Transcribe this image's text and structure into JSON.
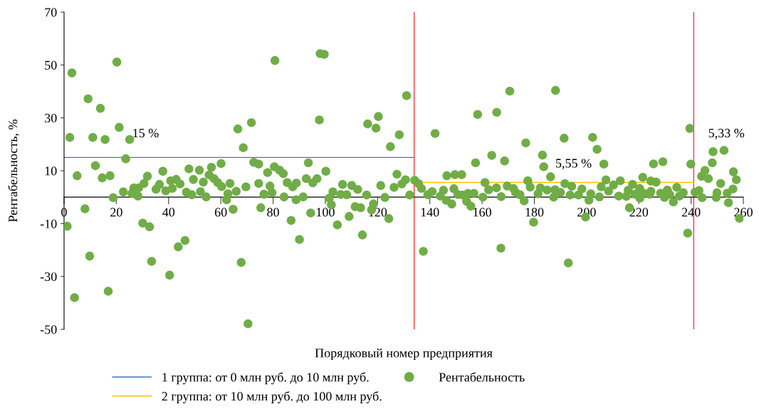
{
  "chart_data": {
    "type": "scatter",
    "xlabel": "Порядковый номер предприятия",
    "ylabel": "Рентабельность, %",
    "xlim": [
      0,
      260
    ],
    "xticks": [
      0,
      20,
      40,
      60,
      80,
      100,
      120,
      140,
      160,
      180,
      200,
      220,
      240,
      260
    ],
    "ylim": [
      -50,
      70
    ],
    "yticks": [
      70,
      50,
      30,
      10,
      {
        "value": -10,
        "label": "-10"
      },
      {
        "value": -30,
        "label": "-30"
      },
      {
        "value": -50,
        "label": "-50"
      }
    ],
    "grid": false,
    "legend": "bottom",
    "series": [
      {
        "name": "1 группа: от 0 млн руб. до 10 млн руб.",
        "type": "line",
        "color": "#4472c4",
        "line_style": "solid",
        "x": [
          0,
          134
        ],
        "values": [
          15,
          15
        ]
      },
      {
        "name": "2 группа: от 10 млн руб. до 100 млн руб.",
        "type": "line",
        "color": "#ffc000",
        "line_style": "solid",
        "x": [
          134,
          241
        ],
        "values": [
          5.55,
          5.55
        ]
      },
      {
        "name": "Рентабельность",
        "marker": "circle",
        "color": "#70ad47",
        "x": [
          1.2,
          2.2,
          3.0,
          4,
          5,
          8,
          9.2,
          9.8,
          11,
          12,
          13.9,
          14.6,
          15.7,
          16.9,
          17.6,
          18.8,
          20.2,
          21.1,
          22.7,
          23.6,
          25.1,
          26,
          26.7,
          28.5,
          28.3,
          30.1,
          30.6,
          31.9,
          32.7,
          33.5,
          35.2,
          36.5,
          37.8,
          38.9,
          40.4,
          40.8,
          41.4,
          42.9,
          43.7,
          44.4,
          46.3,
          46.8,
          47.8,
          48.9,
          49.5,
          51.8,
          52.2,
          53.3,
          54.4,
          55.5,
          56.4,
          57.4,
          58.8,
          60.1,
          60.3,
          62.2,
          62.7,
          63.5,
          64.7,
          65.9,
          66.5,
          67.8,
          68.6,
          69.6,
          70.4,
          71.7,
          72.6,
          74.5,
          74.5,
          75.3,
          76.5,
          77.9,
          78.8,
          79.6,
          80.7,
          80.5,
          82.5,
          83.9,
          84.2,
          85.4,
          86.9,
          87.5,
          88.8,
          88.9,
          90.1,
          91.5,
          92.7,
          93.5,
          94.4,
          95.2,
          96.8,
          97.7,
          98,
          99.6,
          100.2,
          101.5,
          102.3,
          102.9,
          104.6,
          105.9,
          106.6,
          108.2,
          109.1,
          110.1,
          111.4,
          112.4,
          113.5,
          114.2,
          115.8,
          116.2,
          117.7,
          118.4,
          119.4,
          120.3,
          121.2,
          122.8,
          124.3,
          124.9,
          126.3,
          127.4,
          128.3,
          129.3,
          130.7,
          131.1,
          132.3,
          134.2,
          135.7,
          136.8,
          137.5,
          139.2,
          140.9,
          142,
          144,
          145.2,
          146.3,
          146.5,
          148.4,
          149.2,
          149.6,
          150.7,
          152.2,
          152.5,
          154.1,
          154.6,
          155.7,
          156.9,
          157.5,
          158.3,
          160.3,
          161.1,
          162.5,
          163.7,
          165.5,
          165.6,
          167.2,
          167.3,
          168.6,
          169.6,
          170.6,
          172,
          172.8,
          174.5,
          176.1,
          176.7,
          177.5,
          178.4,
          179.7,
          181.4,
          182.3,
          183.1,
          183.6,
          184.9,
          186.2,
          187.4,
          187.9,
          188.1,
          190,
          191.4,
          191.7,
          193,
          193.7,
          194.3,
          196.9,
          198.2,
          199.6,
          200.9,
          201.6,
          202.3,
          204,
          204.9,
          205.6,
          206.6,
          207.4,
          208.4,
          210.3,
          212.3,
          212.9,
          215.2,
          215.9,
          216.4,
          217.6,
          218.5,
          220.3,
          220.4,
          221.5,
          221.8,
          224.1,
          224.6,
          224.6,
          225.6,
          226.6,
          228.3,
          229.2,
          229.8,
          230.9,
          231.8,
          233.2,
          234.5,
          235.5,
          237,
          238.7,
          239.5,
          239.9,
          241.5,
          243,
          244,
          244.2,
          245.3,
          246.6,
          248.1,
          248.4,
          249.6,
          249.9,
          251.3,
          252.6,
          253.8,
          254.3,
          256,
          256.2,
          257.3,
          258.5
        ],
        "values": [
          -11,
          22.6,
          47,
          -38,
          8.1,
          -4.4,
          37.2,
          -22.3,
          22.6,
          11.9,
          33.6,
          7.3,
          21.8,
          -35.6,
          8.1,
          -0.2,
          51.1,
          26.4,
          2,
          14.5,
          21.8,
          1.4,
          3.5,
          3.5,
          0.4,
          -9.8,
          5.2,
          7.9,
          -11.2,
          -24.3,
          3,
          4.8,
          9.8,
          2.4,
          -29.5,
          6.2,
          3.3,
          6.7,
          -18.8,
          5,
          -16.4,
          1.9,
          10.7,
          0.9,
          6.7,
          10.2,
          2.1,
          5.7,
          0.1,
          8.4,
          11.3,
          7,
          5.5,
          12.7,
          4,
          -1,
          1.3,
          5.2,
          -4.6,
          2.2,
          25.8,
          -24.7,
          18.7,
          3.9,
          -47.9,
          28.2,
          13.2,
          12.5,
          5.2,
          -4,
          1.1,
          9.3,
          4.2,
          1.7,
          51.7,
          11.5,
          10.2,
          8.9,
          0.1,
          5.5,
          -8.8,
          3.9,
          -1,
          5.3,
          -16,
          0.1,
          7,
          13,
          -6,
          5.4,
          7,
          29.2,
          54.3,
          54,
          9.8,
          -0.4,
          -2.9,
          2,
          -10.5,
          1,
          4.8,
          0.9,
          -7.3,
          4.4,
          -3.6,
          2.9,
          -4,
          -14.3,
          0.8,
          27.7,
          -4.8,
          -2.6,
          26.1,
          30.5,
          4.4,
          -0.1,
          -8.1,
          19.1,
          3.7,
          8.7,
          23.6,
          5,
          6.6,
          38.4,
          0.8,
          6.4,
          5.1,
          3.3,
          -20.5,
          0.9,
          2.1,
          24.1,
          0.4,
          2.6,
          -1.2,
          8.1,
          -2.6,
          3.2,
          8.5,
          1,
          8.5,
          0.8,
          -1.6,
          1.4,
          -3.4,
          1.4,
          13,
          31.3,
          0,
          5.5,
          2.8,
          15.8,
          3.5,
          32.1,
          -19.3,
          0.2,
          13.7,
          4.2,
          40.1,
          3.3,
          1.8,
          0.9,
          -1.4,
          20.5,
          6.2,
          3.8,
          -9.5,
          1.3,
          3.5,
          15.9,
          11.5,
          2.7,
          7.7,
          0,
          2.8,
          40.4,
          1.8,
          22.3,
          5.1,
          -24.9,
          0.8,
          4.1,
          0.8,
          3.1,
          -7.5,
          -1.1,
          1.3,
          22.6,
          18.1,
          0.1,
          3.9,
          12.5,
          6.5,
          2.3,
          4.6,
          0.4,
          6.2,
          0.3,
          2.6,
          -4,
          4.8,
          1.1,
          3.3,
          -0.4,
          7.5,
          1.5,
          1.1,
          2.2,
          6.1,
          12.6,
          5.7,
          1.5,
          13.4,
          -0.1,
          2.7,
          1,
          -1.8,
          3.7,
          0.4,
          1.7,
          -13.6,
          26,
          12.5,
          1.9,
          2.5,
          7.9,
          -0.2,
          10.1,
          7,
          13,
          17.2,
          -0.1,
          1.7,
          5.2,
          17.7,
          1.5,
          -2.1,
          3.1,
          9.6,
          6.6,
          -8
        ]
      }
    ],
    "ref_lines": [
      {
        "axis": "x",
        "value": 134,
        "color": "#ff3b3b"
      },
      {
        "axis": "x",
        "value": 241,
        "color": "#ff3b3b"
      }
    ],
    "annotations": [
      "15 %",
      "5,55 %",
      "5,33 %"
    ]
  }
}
